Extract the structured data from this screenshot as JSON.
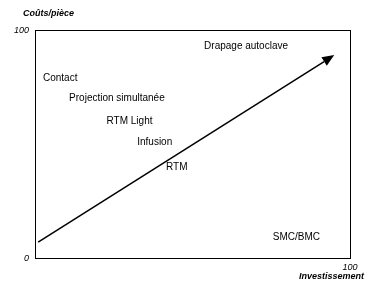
{
  "chart_data": {
    "type": "scatter",
    "y_label": "Coûts/pièce",
    "x_label": "Investissement",
    "point_labels": [
      "Drapage autoclave",
      "Contact",
      "Projection simultanée",
      "RTM Light",
      "Infusion",
      "RTM",
      "SMC/BMC"
    ],
    "x": [
      67,
      8,
      26,
      30,
      38,
      45,
      83
    ],
    "values": [
      93,
      79,
      70,
      60,
      51,
      40,
      9
    ],
    "xlim": [
      0,
      100
    ],
    "ylim": [
      0,
      100
    ],
    "xticks": [
      100
    ],
    "yticks": [
      0,
      100
    ],
    "grid": false,
    "arrow": {
      "x": [
        1,
        95
      ],
      "y": [
        7,
        89
      ]
    }
  }
}
